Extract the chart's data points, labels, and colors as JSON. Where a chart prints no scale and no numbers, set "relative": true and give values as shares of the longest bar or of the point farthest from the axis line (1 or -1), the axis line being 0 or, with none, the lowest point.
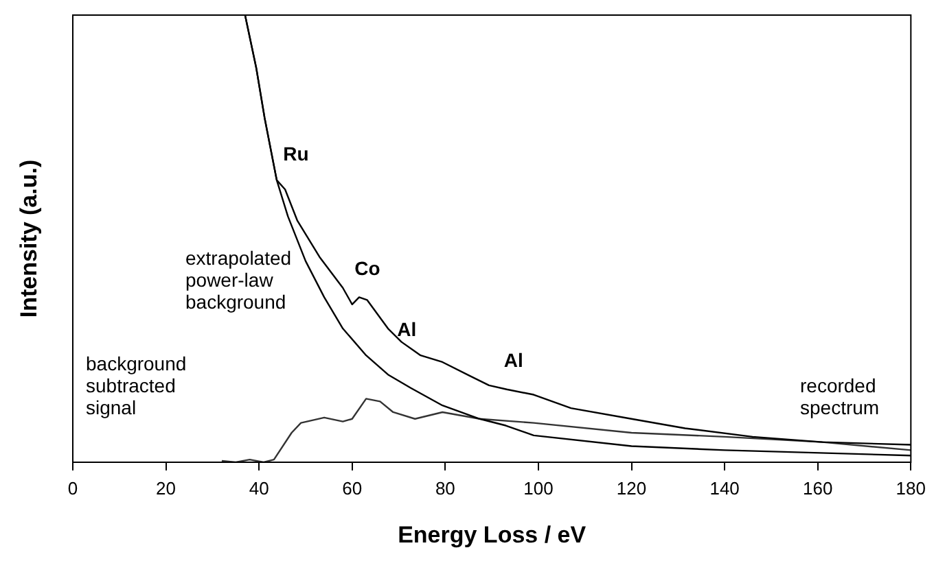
{
  "chart_data": {
    "type": "line",
    "relative": true,
    "xlabel": "Energy Loss / eV",
    "ylabel": "Intensity (a.u.)",
    "xlim": [
      0,
      180
    ],
    "xticks": [
      0,
      20,
      40,
      60,
      80,
      100,
      120,
      140,
      160,
      180
    ],
    "grid": false,
    "legend": false,
    "marker": "none",
    "line_style": "solid",
    "series": [
      {
        "name": "recorded spectrum",
        "color": "#000000",
        "x": [
          37,
          39.4,
          41.2,
          43.8,
          45.6,
          48.2,
          53,
          58,
          60,
          61.5,
          63.2,
          67.7,
          70.6,
          74.7,
          79.4,
          85.3,
          89.4,
          93.2,
          99,
          107,
          120,
          131.5,
          146,
          161,
          180
        ],
        "values": [
          1.0,
          0.882,
          0.77,
          0.631,
          0.61,
          0.541,
          0.459,
          0.39,
          0.353,
          0.369,
          0.363,
          0.299,
          0.269,
          0.239,
          0.224,
          0.193,
          0.172,
          0.163,
          0.151,
          0.121,
          0.097,
          0.076,
          0.057,
          0.045,
          0.039
        ]
      },
      {
        "name": "extrapolated power-law background",
        "color": "#000000",
        "x": [
          37,
          39.4,
          41.2,
          43.8,
          46.2,
          50,
          54,
          58,
          63,
          67.7,
          72.6,
          79.4,
          87.4,
          93,
          99,
          120,
          140,
          180
        ],
        "values": [
          1.0,
          0.882,
          0.77,
          0.631,
          0.55,
          0.45,
          0.369,
          0.299,
          0.239,
          0.196,
          0.166,
          0.127,
          0.097,
          0.082,
          0.06,
          0.036,
          0.027,
          0.015
        ]
      },
      {
        "name": "background subtracted signal",
        "color": "#333333",
        "x": [
          32,
          35,
          38,
          41,
          43.2,
          47,
          49,
          54,
          58,
          60,
          63,
          66,
          68.8,
          73.5,
          79.4,
          87.4,
          99,
          120,
          140,
          161,
          180
        ],
        "values": [
          0.003,
          0.0,
          0.006,
          0.0,
          0.006,
          0.066,
          0.088,
          0.1,
          0.091,
          0.097,
          0.142,
          0.136,
          0.112,
          0.097,
          0.112,
          0.097,
          0.088,
          0.066,
          0.057,
          0.045,
          0.027
        ]
      }
    ],
    "annotations": [
      {
        "text": "Ru",
        "x": 43.8,
        "y": 0.631
      },
      {
        "text": "Co",
        "x": 61.5,
        "y": 0.369
      },
      {
        "text": "Al",
        "x": 79.4,
        "y": 0.224
      },
      {
        "text": "Al",
        "x": 93.2,
        "y": 0.163
      }
    ]
  }
}
